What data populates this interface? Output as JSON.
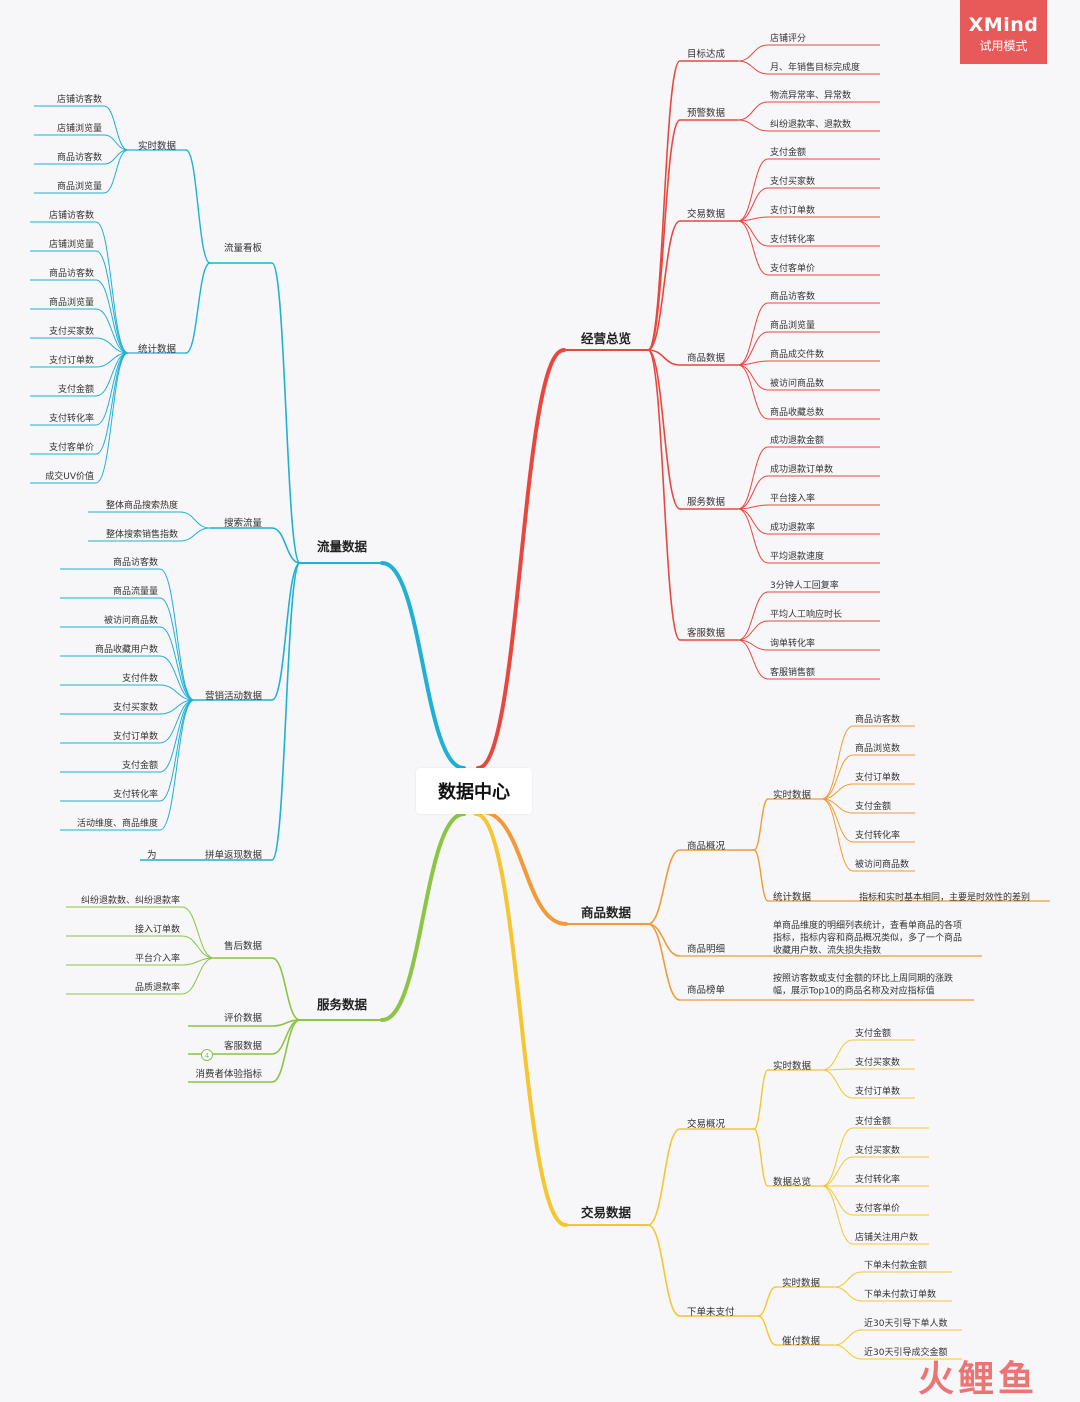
{
  "badge": {
    "brand": "XMind",
    "mode": "试用模式"
  },
  "watermark": "火鲤鱼",
  "center": "数据中心",
  "colors": {
    "red": "#e8473e",
    "orange": "#f29a38",
    "yellow": "#f6c632",
    "blue": "#1fb0d6",
    "green": "#8cc443"
  },
  "branches": {
    "jingying": {
      "label": "经营总览",
      "groups": [
        {
          "label": "目标达成",
          "items": [
            "店铺评分",
            "月、年销售目标完成度"
          ]
        },
        {
          "label": "预警数据",
          "items": [
            "物流异常率、异常数",
            "纠纷退款率、退款数"
          ]
        },
        {
          "label": "交易数据",
          "items": [
            "支付金额",
            "支付买家数",
            "支付订单数",
            "支付转化率",
            "支付客单价"
          ]
        },
        {
          "label": "商品数据",
          "items": [
            "商品访客数",
            "商品浏览量",
            "商品成交件数",
            "被访问商品数",
            "商品收藏总数"
          ]
        },
        {
          "label": "服务数据",
          "items": [
            "成功退款金额",
            "成功退款订单数",
            "平台接入率",
            "成功退款率",
            "平均退款速度"
          ]
        },
        {
          "label": "客服数据",
          "items": [
            "3分钟人工回复率",
            "平均人工响应时长",
            "询单转化率",
            "客服销售额"
          ]
        }
      ]
    },
    "shangpin": {
      "label": "商品数据",
      "gaikuang": {
        "label": "商品概况",
        "realtime": {
          "label": "实时数据",
          "items": [
            "商品访客数",
            "商品浏览数",
            "支付订单数",
            "支付金额",
            "支付转化率",
            "被访问商品数"
          ]
        },
        "stats": {
          "label": "统计数据",
          "note": "指标和实时基本相同，主要是时效性的差别"
        }
      },
      "mingxi": {
        "label": "商品明细",
        "note": [
          "单商品维度的明细列表统计，查看单商品的各项",
          "指标，指标内容和商品概况类似，多了一个商品",
          "收藏用户数、流失损失指数"
        ]
      },
      "bangdan": {
        "label": "商品榜单",
        "note": [
          "按照访客数或支付金额的环比上周同期的涨跌",
          "幅，展示Top10的商品名称及对应指标值"
        ]
      }
    },
    "jiaoyi": {
      "label": "交易数据",
      "gaikuang": {
        "label": "交易概况",
        "realtime": {
          "label": "实时数据",
          "items": [
            "支付金额",
            "支付买家数",
            "支付订单数"
          ]
        },
        "overview": {
          "label": "数据总览",
          "items": [
            "支付金额",
            "支付买家数",
            "支付转化率",
            "支付客单价",
            "店铺关注用户数"
          ]
        }
      },
      "unpaid": {
        "label": "下单未支付",
        "realtime": {
          "label": "实时数据",
          "items": [
            "下单未付款金额",
            "下单未付款订单数"
          ]
        },
        "urge": {
          "label": "催付数据",
          "items": [
            "近30天引导下单人数",
            "近30天引导成交金额"
          ]
        }
      }
    },
    "liuliang": {
      "label": "流量数据",
      "board": {
        "label": "流量看板",
        "realtime": {
          "label": "实时数据",
          "items": [
            "店铺访客数",
            "店铺浏览量",
            "商品访客数",
            "商品浏览量"
          ]
        },
        "stats": {
          "label": "统计数据",
          "items": [
            "店铺访客数",
            "店铺浏览量",
            "商品访客数",
            "商品浏览量",
            "支付买家数",
            "支付订单数",
            "支付金额",
            "支付转化率",
            "支付客单价",
            "成交UV价值"
          ]
        }
      },
      "search": {
        "label": "搜索流量",
        "items": [
          "整体商品搜索热度",
          "整体搜索销售指数"
        ]
      },
      "marketing": {
        "label": "营销活动数据",
        "items": [
          "商品访客数",
          "商品流量量",
          "被访问商品数",
          "商品收藏用户数",
          "支付件数",
          "支付买家数",
          "支付订单数",
          "支付金额",
          "支付转化率",
          "活动维度、商品维度"
        ]
      },
      "pindan": {
        "label": "拼单返现数据",
        "items": [
          "为"
        ]
      }
    },
    "fuwu": {
      "label": "服务数据",
      "aftersale": {
        "label": "售后数据",
        "items": [
          "纠纷退款数、纠纷退款率",
          "接入订单数",
          "平台介入率",
          "品质退款率"
        ]
      },
      "others": [
        "评价数据",
        "客服数据",
        "消费者体验指标"
      ],
      "count_badge": "4"
    }
  }
}
